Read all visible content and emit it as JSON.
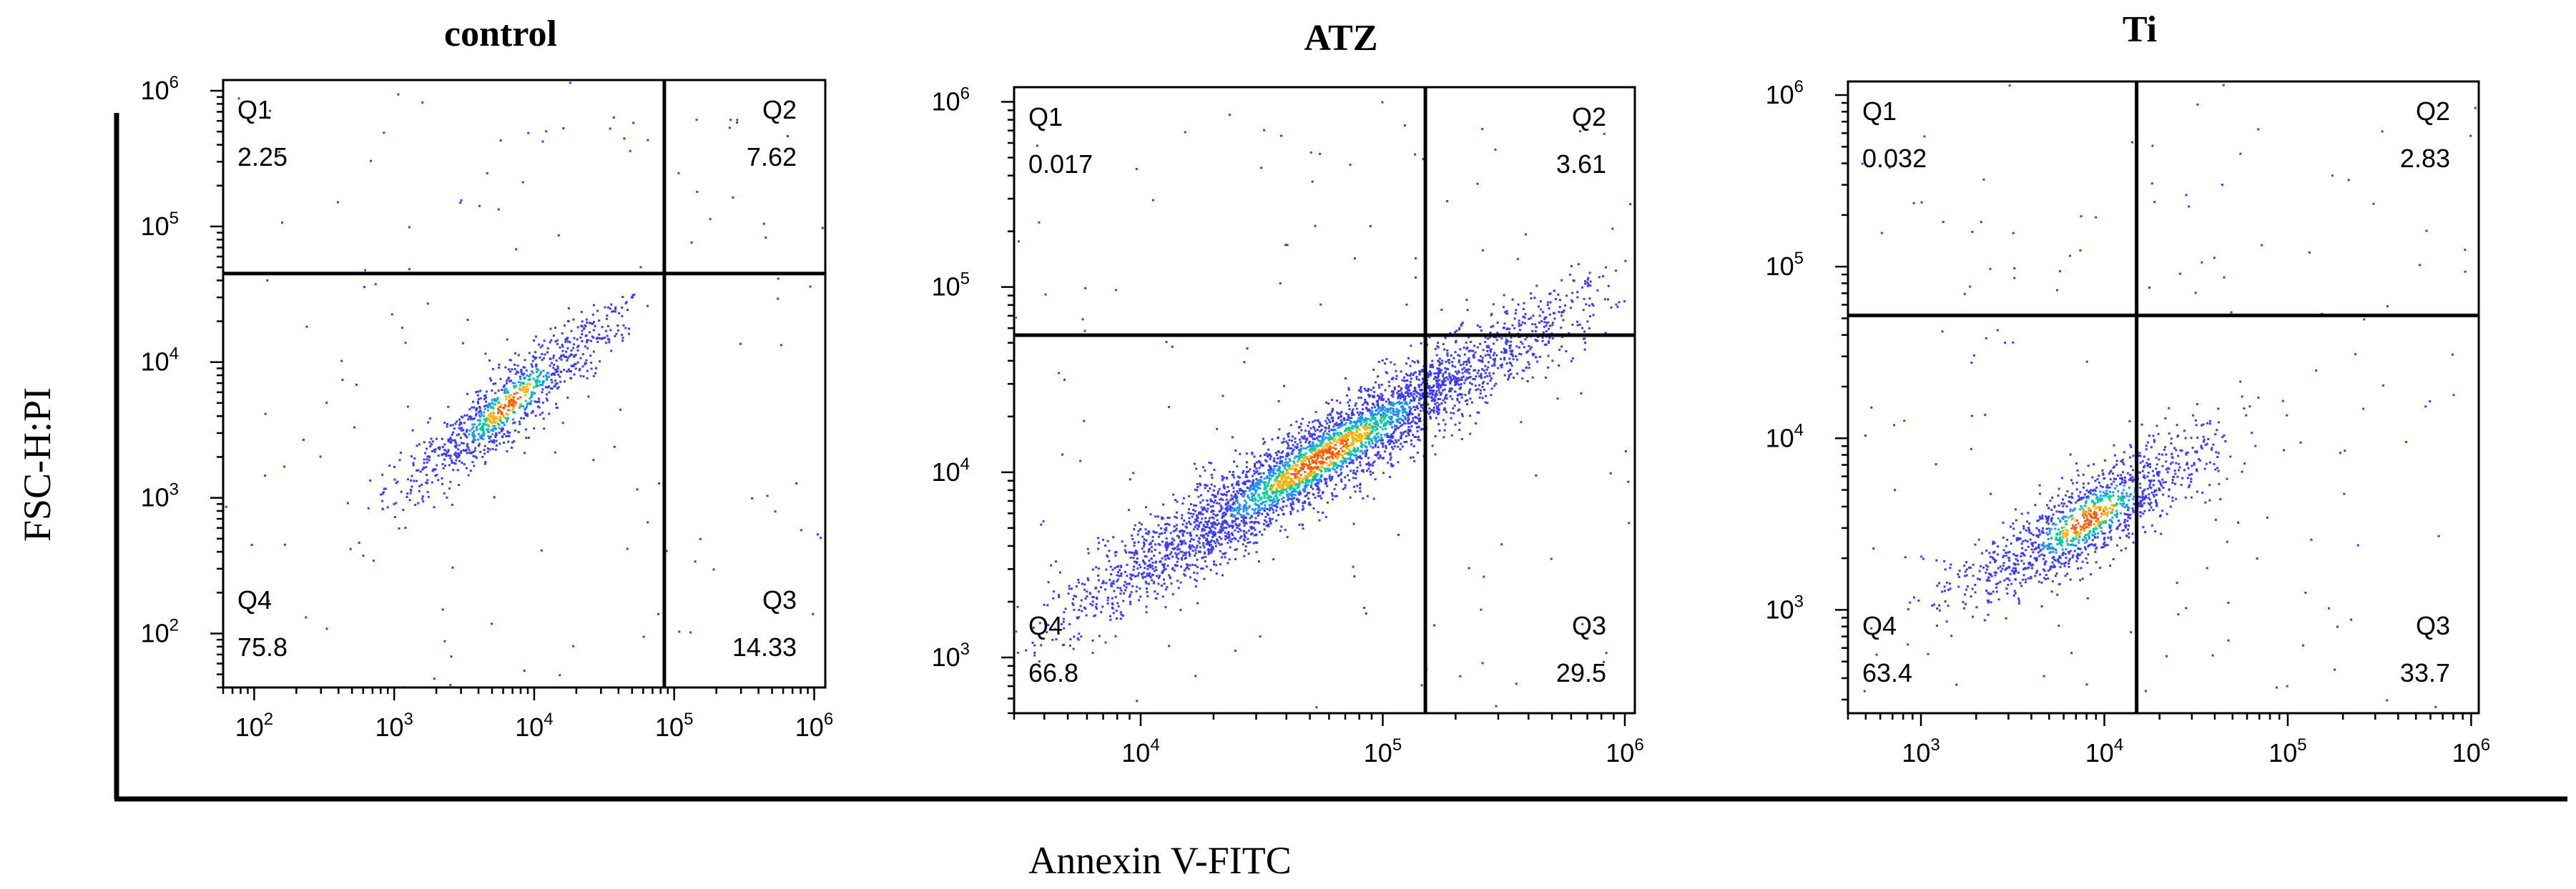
{
  "figure": {
    "x_axis_title": "Annexin V-FITC",
    "y_axis_title": "FSC-H:PI"
  },
  "chart_data": [
    {
      "type": "scatter",
      "title": "control",
      "xlabel": "Annexin V-FITC",
      "ylabel": "FSC-H:PI",
      "x_scale": "log",
      "y_scale": "log",
      "x_ticks": [
        100,
        1000,
        10000,
        100000,
        1000000
      ],
      "y_ticks": [
        100,
        1000,
        10000,
        100000,
        1000000
      ],
      "xlim": [
        60,
        1200000
      ],
      "ylim": [
        40,
        1200000
      ],
      "gate": {
        "x": 85000,
        "y": 45000
      },
      "quadrants": [
        {
          "name": "Q1",
          "value": "2.25"
        },
        {
          "name": "Q2",
          "value": "7.62"
        },
        {
          "name": "Q3",
          "value": "14.33"
        },
        {
          "name": "Q4",
          "value": "75.8"
        }
      ],
      "population": {
        "n": 1100,
        "center_x": 6500,
        "center_y": 5000,
        "slope": 0.8,
        "spread_x": 0.4,
        "spread_y": 0.14,
        "outliers": 0.12
      },
      "colors": [
        "#3b3bff",
        "#1e90ff",
        "#00c8a0",
        "#ffb000",
        "#ff5a00"
      ]
    },
    {
      "type": "scatter",
      "title": "ATZ",
      "xlabel": "Annexin V-FITC",
      "ylabel": "FSC-H:PI",
      "x_scale": "log",
      "y_scale": "log",
      "x_ticks": [
        10000,
        100000,
        1000000
      ],
      "y_ticks": [
        1000,
        10000,
        100000,
        1000000
      ],
      "xlim": [
        3000,
        1100000
      ],
      "ylim": [
        500,
        1200000
      ],
      "gate": {
        "x": 150000,
        "y": 55000
      },
      "quadrants": [
        {
          "name": "Q1",
          "value": "0.017"
        },
        {
          "name": "Q2",
          "value": "3.61"
        },
        {
          "name": "Q3",
          "value": "29.5"
        },
        {
          "name": "Q4",
          "value": "66.8"
        }
      ],
      "population": {
        "n": 4000,
        "center_x": 55000,
        "center_y": 12000,
        "slope": 0.78,
        "spread_x": 0.5,
        "spread_y": 0.12,
        "outliers": 0.03
      },
      "colors": [
        "#3b3bff",
        "#1e90ff",
        "#00c8a0",
        "#ffb000",
        "#ff5a00"
      ]
    },
    {
      "type": "scatter",
      "title": "Ti",
      "xlabel": "Annexin V-FITC",
      "ylabel": "FSC-H:PI",
      "x_scale": "log",
      "y_scale": "log",
      "x_ticks": [
        1000,
        10000,
        100000,
        1000000
      ],
      "y_ticks": [
        1000,
        10000,
        100000,
        1000000
      ],
      "xlim": [
        400,
        1100000
      ],
      "ylim": [
        250,
        1200000
      ],
      "gate": {
        "x": 15000,
        "y": 52000
      },
      "quadrants": [
        {
          "name": "Q1",
          "value": "0.032"
        },
        {
          "name": "Q2",
          "value": "2.83"
        },
        {
          "name": "Q3",
          "value": "33.7"
        },
        {
          "name": "Q4",
          "value": "63.4"
        }
      ],
      "population": {
        "n": 1400,
        "center_x": 8000,
        "center_y": 3400,
        "slope": 0.6,
        "spread_x": 0.35,
        "spread_y": 0.13,
        "outliers": 0.1
      },
      "colors": [
        "#3b3bff",
        "#1e90ff",
        "#00c8a0",
        "#ffb000",
        "#ff5a00"
      ]
    }
  ]
}
